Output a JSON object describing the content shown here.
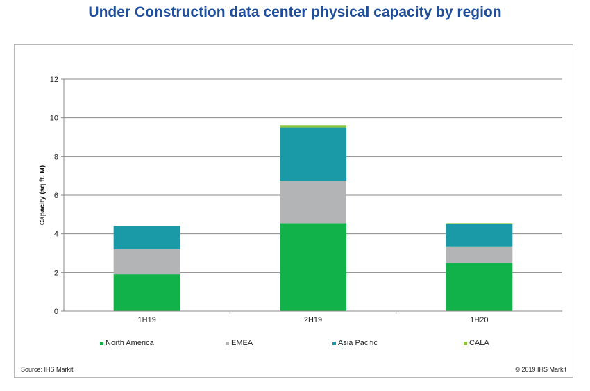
{
  "header": {
    "title": "Under Construction data center physical capacity by region"
  },
  "footer": {
    "source": "Source: IHS Markit",
    "copyright": "© 2019 IHS Markit"
  },
  "colors": {
    "North America": "#12b24a",
    "EMEA": "#b3b4b6",
    "Asia Pacific": "#1a9aa6",
    "CALA": "#8cc63f",
    "title": "#1f4e9c"
  },
  "chart_data": {
    "type": "bar",
    "stacked": true,
    "title": "",
    "ylabel": "Capacity (sq ft. M)",
    "xlabel": "",
    "categories": [
      "1H19",
      "2H19",
      "1H20"
    ],
    "ylim": [
      0,
      12
    ],
    "yticks": [
      0,
      2,
      4,
      6,
      8,
      10,
      12
    ],
    "grid": true,
    "legend_position": "bottom",
    "series": [
      {
        "name": "North America",
        "values": [
          1.9,
          4.55,
          2.5
        ]
      },
      {
        "name": "EMEA",
        "values": [
          1.3,
          2.2,
          0.85
        ]
      },
      {
        "name": "Asia Pacific",
        "values": [
          1.2,
          2.75,
          1.15
        ]
      },
      {
        "name": "CALA",
        "values": [
          0,
          0.12,
          0.05
        ]
      }
    ]
  }
}
